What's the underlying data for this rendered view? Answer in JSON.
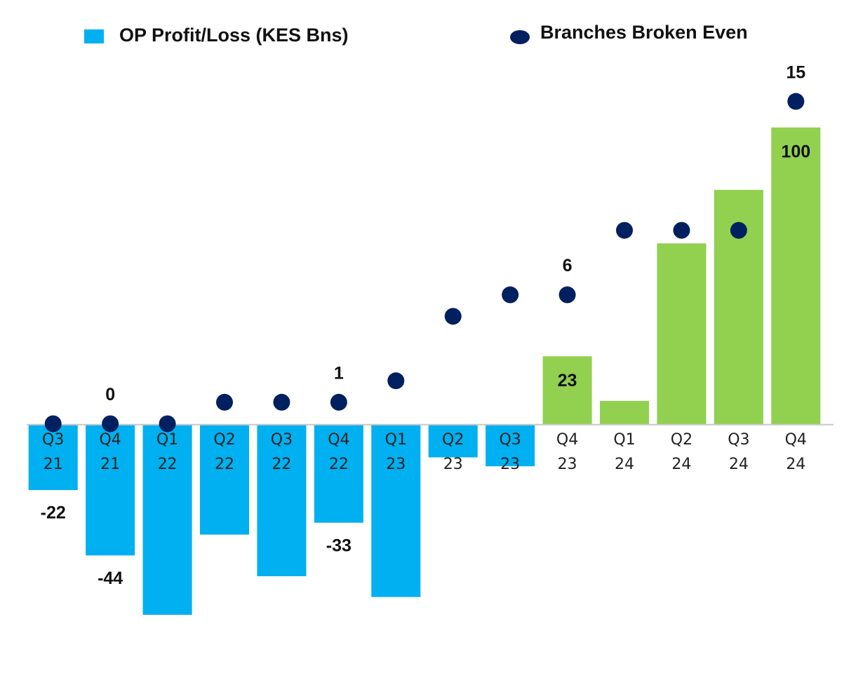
{
  "chart_data": {
    "type": "bar",
    "categories": [
      "Q3 21",
      "Q4 21",
      "Q1 22",
      "Q2 22",
      "Q3 22",
      "Q4 22",
      "Q1 23",
      "Q2 23",
      "Q3 23",
      "Q4 23",
      "Q1 24",
      "Q2 24",
      "Q3 24",
      "Q4 24"
    ],
    "series": [
      {
        "name": "OP Profit/Loss (KES Bns)",
        "type": "bar",
        "color": "#00b0f0",
        "colors": [
          "#00b0f0",
          "#00b0f0",
          "#00b0f0",
          "#00b0f0",
          "#00b0f0",
          "#00b0f0",
          "#00b0f0",
          "#00b0f0",
          "#00b0f0",
          "#92d050",
          "#92d050",
          "#92d050",
          "#92d050",
          "#92d050"
        ],
        "values": [
          -22,
          -44,
          -64,
          -37,
          -51,
          -33,
          -58,
          -11,
          -14,
          23,
          8,
          61,
          79,
          100
        ],
        "value_labels": [
          "-22",
          "-44",
          null,
          null,
          null,
          "-33",
          null,
          null,
          null,
          "23",
          null,
          null,
          null,
          "100"
        ]
      },
      {
        "name": "Branches Broken Even",
        "type": "scatter",
        "axis": "y2",
        "color": "#002060",
        "values": [
          0,
          0,
          0,
          1,
          1,
          1,
          2,
          5,
          6,
          6,
          9,
          9,
          9,
          15
        ],
        "value_labels": [
          null,
          "0",
          null,
          null,
          null,
          "1",
          null,
          null,
          null,
          "6",
          null,
          null,
          null,
          "15"
        ]
      }
    ],
    "ylim": [
      -72,
      116
    ],
    "y2lim": [
      -10,
      16
    ],
    "grid": false
  }
}
